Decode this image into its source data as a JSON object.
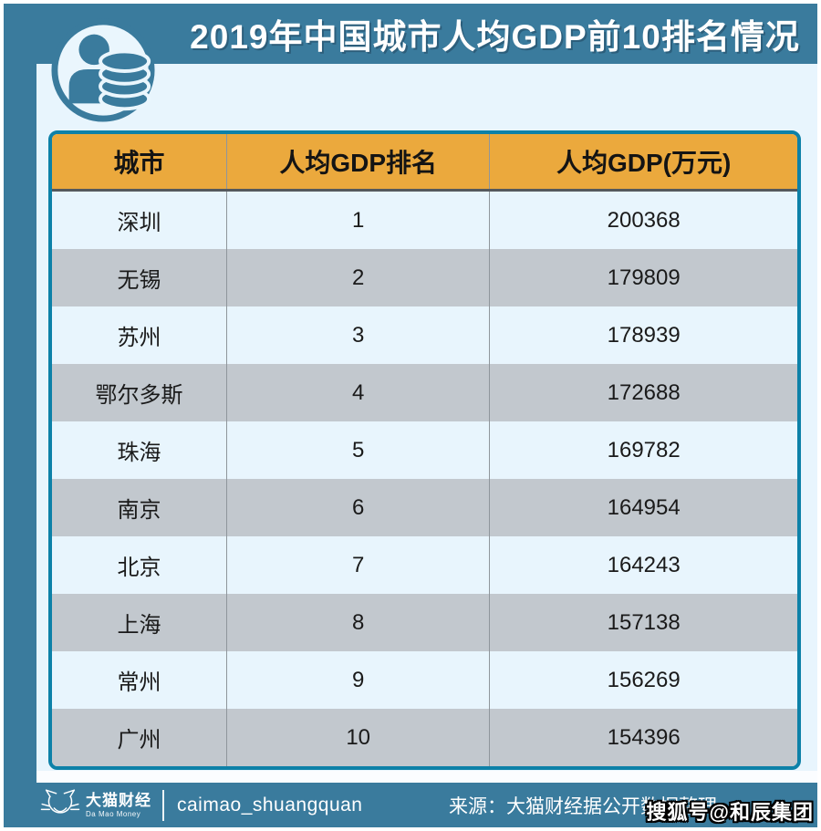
{
  "title": "2019年中国城市人均GDP前10排名情况",
  "chart_data": {
    "type": "table",
    "title": "2019年中国城市人均GDP前10排名情况",
    "columns": [
      "城市",
      "人均GDP排名",
      "人均GDP(万元)"
    ],
    "rows": [
      [
        "深圳",
        "1",
        "200368"
      ],
      [
        "无锡",
        "2",
        "179809"
      ],
      [
        "苏州",
        "3",
        "178939"
      ],
      [
        "鄂尔多斯",
        "4",
        "172688"
      ],
      [
        "珠海",
        "5",
        "169782"
      ],
      [
        "南京",
        "6",
        "164954"
      ],
      [
        "北京",
        "7",
        "164243"
      ],
      [
        "上海",
        "8",
        "157138"
      ],
      [
        "常州",
        "9",
        "156269"
      ],
      [
        "广州",
        "10",
        "154396"
      ]
    ]
  },
  "footer": {
    "brand_cn": "大猫财经",
    "brand_en": "Da Mao Money",
    "handle": "caimao_shuangquan",
    "source": "来源：大猫财经据公开数据整理"
  },
  "watermark": "搜狐号@和辰集团",
  "icons": {
    "hero": "person-with-coins-icon",
    "footer_logo": "cat-face-logo"
  },
  "colors": {
    "frame_blue": "#3a7b9d",
    "canvas_light_blue": "#e8f5fd",
    "header_orange": "#eba93d",
    "row_gray": "#c2c8ce",
    "table_border_teal": "#0d81a8",
    "text_dark": "#1a1a1a",
    "text_white": "#ffffff"
  }
}
